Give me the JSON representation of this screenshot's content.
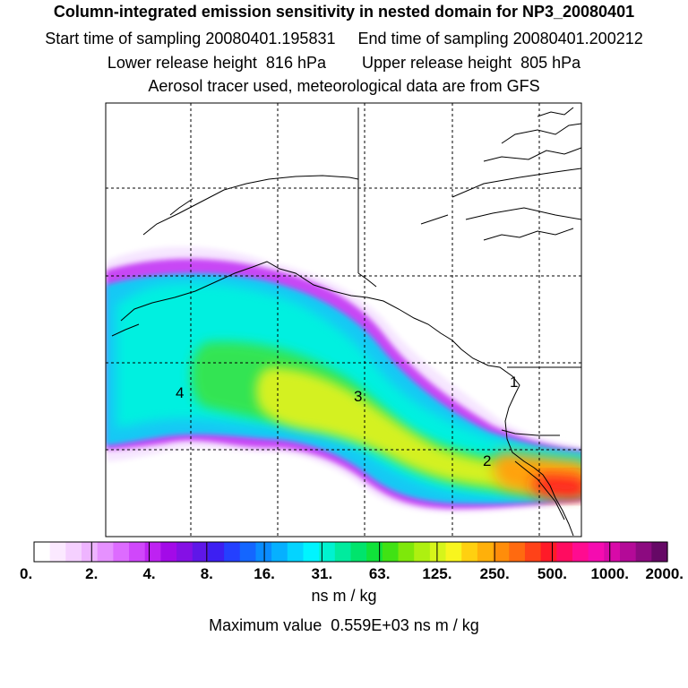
{
  "header": {
    "title": "Column-integrated emission sensitivity in nested domain for NP3_20080401",
    "start_label": "Start time of sampling 20080401.195831",
    "end_label": "End time of sampling 20080401.200212",
    "lower_label": "Lower release height  816 hPa",
    "upper_label": "Upper release height  805 hPa",
    "tracer_note": "Aerosol tracer used, meteorological data are from GFS"
  },
  "chart_data": {
    "type": "heatmap",
    "title": "Column-integrated emission sensitivity in nested domain for NP3_20080401",
    "colorbar": {
      "tick_labels": [
        "0.",
        "2.",
        "4.",
        "8.",
        "16.",
        "31.",
        "63.",
        "125.",
        "250.",
        "500.",
        "1000.",
        "2000."
      ],
      "unit": "ns m / kg",
      "colors": [
        "#ffffff",
        "#fbe9ff",
        "#f5d0ff",
        "#eeb4ff",
        "#e691ff",
        "#dd6bff",
        "#d047fb",
        "#be22f2",
        "#a30ae8",
        "#8510e5",
        "#5f17e8",
        "#3d1ff2",
        "#2440ff",
        "#1466ff",
        "#0a8cff",
        "#06b0ff",
        "#04d4ff",
        "#00f4ff",
        "#00f2d0",
        "#00eb9e",
        "#00e46c",
        "#10e23a",
        "#40e214",
        "#7ee80a",
        "#aef010",
        "#d6f51a",
        "#f8f51e",
        "#ffd010",
        "#ffb00a",
        "#ff8d0a",
        "#ff6a10",
        "#ff4218",
        "#ff1a28",
        "#ff0c60",
        "#ff0c90",
        "#f50cb0",
        "#d80aa8",
        "#b40a98",
        "#8c0a80",
        "#660866",
        "#450a48"
      ]
    },
    "cluster_labels": [
      "4",
      "3",
      "2",
      "1"
    ],
    "max_value": 559
  },
  "footer": {
    "max_label": "Maximum value  0.559E+03 ns m / kg"
  }
}
